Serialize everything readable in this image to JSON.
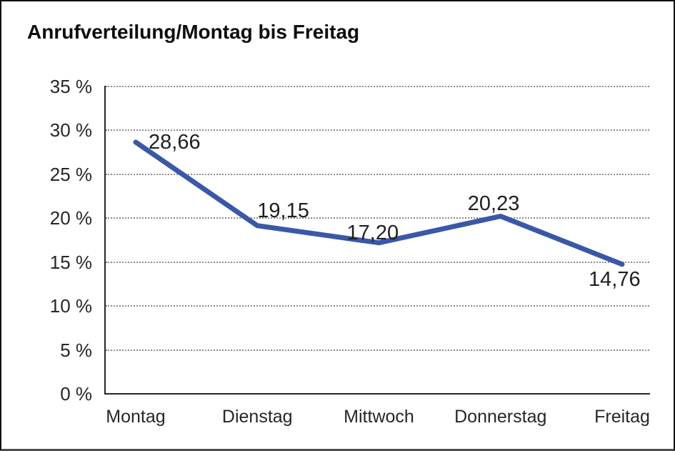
{
  "chart_data": {
    "type": "line",
    "title": "Anrufverteilung/Montag bis Freitag",
    "categories": [
      "Montag",
      "Dienstag",
      "Mittwoch",
      "Donnerstag",
      "Freitag"
    ],
    "values": [
      28.66,
      19.15,
      17.2,
      20.23,
      14.76
    ],
    "point_labels": [
      "28,66",
      "19,15",
      "17,20",
      "20,23",
      "14,76"
    ],
    "xlabel": "",
    "ylabel": "",
    "ylim": [
      0,
      35
    ],
    "ytick_step": 5,
    "ytick_labels": [
      "0 %",
      "5 %",
      "10 %",
      "15 %",
      "20 %",
      "25 %",
      "30 %",
      "35 %"
    ],
    "grid": "horizontal-dotted",
    "legend_position": "none",
    "line_color": "#3A57A8",
    "gridline_color": "#8c8c8c",
    "axis_color": "#262626",
    "decimal_separator": ","
  }
}
